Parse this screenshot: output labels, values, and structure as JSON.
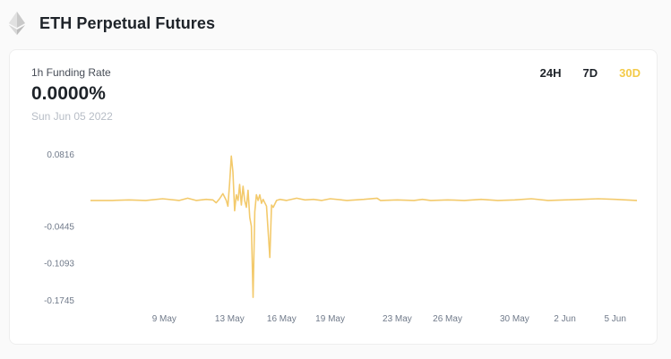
{
  "header": {
    "title": "ETH Perpetual Futures",
    "icon": "ethereum-icon"
  },
  "card": {
    "rate_label": "1h Funding Rate",
    "rate_value": "0.0000%",
    "rate_date": "Sun Jun 05 2022",
    "ranges": [
      {
        "label": "24H",
        "active": false
      },
      {
        "label": "7D",
        "active": false
      },
      {
        "label": "30D",
        "active": true
      }
    ]
  },
  "colors": {
    "line": "#f3ca6c",
    "accent": "#f0b90b",
    "axis_text": "#707a8a"
  },
  "chart_data": {
    "type": "line",
    "yticks": [
      "0.0816",
      "-0.0445",
      "-0.1093",
      "-0.1745"
    ],
    "ytick_values": [
      0.0816,
      -0.0445,
      -0.1093,
      -0.1745
    ],
    "xticks": [
      "9 May",
      "13 May",
      "16 May",
      "19 May",
      "23 May",
      "26 May",
      "30 May",
      "2 Jun",
      "5 Jun"
    ],
    "xtick_days": [
      3.1,
      7.0,
      10.1,
      13.0,
      17.0,
      20.0,
      24.0,
      27.0,
      30.0
    ],
    "ylim": [
      -0.1745,
      0.0816
    ],
    "xlim_days": [
      -1.3,
      31.3
    ],
    "grid": false,
    "series": [
      {
        "points": [
          [
            -1.3,
            0.0
          ],
          [
            0.0,
            0.0
          ],
          [
            1.0,
            0.001
          ],
          [
            2.0,
            0.0
          ],
          [
            3.0,
            0.003
          ],
          [
            4.0,
            0.0
          ],
          [
            4.5,
            0.004
          ],
          [
            5.0,
            0.0
          ],
          [
            5.6,
            0.002
          ],
          [
            6.0,
            0.001
          ],
          [
            6.2,
            -0.004
          ],
          [
            6.4,
            0.003
          ],
          [
            6.6,
            0.012
          ],
          [
            6.8,
            0.0
          ],
          [
            6.9,
            -0.01
          ],
          [
            7.0,
            0.03
          ],
          [
            7.1,
            0.078
          ],
          [
            7.2,
            0.05
          ],
          [
            7.3,
            -0.018
          ],
          [
            7.4,
            0.01
          ],
          [
            7.5,
            0.0
          ],
          [
            7.6,
            0.028
          ],
          [
            7.7,
            -0.008
          ],
          [
            7.8,
            0.025
          ],
          [
            7.9,
            0.0
          ],
          [
            8.0,
            -0.012
          ],
          [
            8.1,
            0.018
          ],
          [
            8.2,
            -0.03
          ],
          [
            8.3,
            -0.045
          ],
          [
            8.4,
            -0.17
          ],
          [
            8.5,
            -0.02
          ],
          [
            8.6,
            0.01
          ],
          [
            8.7,
            0.0
          ],
          [
            8.8,
            0.01
          ],
          [
            8.9,
            -0.005
          ],
          [
            9.0,
            0.002
          ],
          [
            9.2,
            -0.01
          ],
          [
            9.4,
            -0.1
          ],
          [
            9.5,
            -0.008
          ],
          [
            9.6,
            -0.012
          ],
          [
            9.8,
            0.0
          ],
          [
            10.0,
            0.002
          ],
          [
            10.4,
            0.0
          ],
          [
            11.0,
            0.004
          ],
          [
            11.5,
            0.001
          ],
          [
            12.0,
            0.002
          ],
          [
            12.5,
            0.0
          ],
          [
            13.0,
            0.003
          ],
          [
            14.0,
            0.0
          ],
          [
            15.0,
            0.002
          ],
          [
            15.8,
            0.004
          ],
          [
            16.0,
            0.0
          ],
          [
            17.0,
            0.001
          ],
          [
            18.0,
            0.0
          ],
          [
            18.5,
            0.002
          ],
          [
            19.0,
            0.0
          ],
          [
            20.0,
            0.001
          ],
          [
            21.0,
            0.0
          ],
          [
            22.0,
            0.002
          ],
          [
            23.0,
            0.0
          ],
          [
            24.0,
            0.001
          ],
          [
            25.0,
            0.003
          ],
          [
            26.0,
            0.0
          ],
          [
            27.0,
            0.001
          ],
          [
            28.0,
            0.002
          ],
          [
            29.0,
            0.003
          ],
          [
            30.0,
            0.002
          ],
          [
            31.3,
            0.0
          ]
        ]
      }
    ]
  }
}
